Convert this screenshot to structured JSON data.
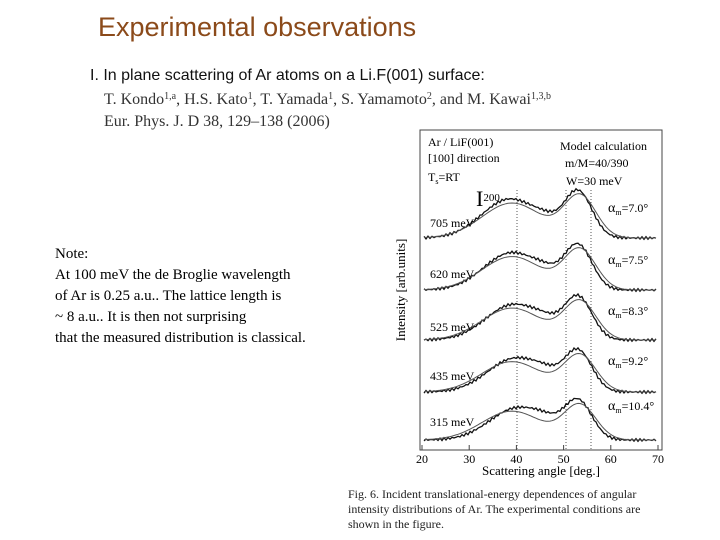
{
  "header": {
    "title": "Experimental observations",
    "subtitle": "I. In plane scattering of Ar atoms on a Li.F(001) surface:"
  },
  "citation": {
    "authors": [
      {
        "name": "T. Kondo",
        "sup": "1,a"
      },
      {
        "name": ", H.S. Kato",
        "sup": "1"
      },
      {
        "name": ", T. Yamada",
        "sup": "1"
      },
      {
        "name": ", S. Yamamoto",
        "sup": "2"
      },
      {
        "name": ", and M. Kawai",
        "sup": "1,3,b"
      }
    ],
    "journal": "Eur. Phys. J. D 38, 129–138 (2006)"
  },
  "note": {
    "heading": "Note:",
    "lines": [
      "At 100 meV the de Broglie wavelength",
      "of Ar is 0.25 a.u.. The lattice length is",
      "~ 8 a.u.. It is then not surprising",
      "that the measured distribution is classical."
    ]
  },
  "figure": {
    "labels": {
      "system": "Ar / LiF(001)",
      "direction": "[100] direction",
      "ts": "T",
      "ts_sub": "s",
      "ts_value": "=RT",
      "model": "Model calculation",
      "mass": "m/M=40/390",
      "width": "W=30 meV",
      "peak": "I",
      "peak_sub": "200"
    },
    "energies": [
      "705 meV",
      "620 meV",
      "525 meV",
      "435 meV",
      "315 meV"
    ],
    "alphas": [
      {
        "symbol": "α",
        "sub": "m",
        "value": "=7.0°"
      },
      {
        "symbol": "α",
        "sub": "m",
        "value": "=7.5°"
      },
      {
        "symbol": "α",
        "sub": "m",
        "value": "=8.3°"
      },
      {
        "symbol": "α",
        "sub": "m",
        "value": "=9.2°"
      },
      {
        "symbol": "α",
        "sub": "m",
        "value": "=10.4°"
      }
    ],
    "y_label": "Intensity [arb.units]",
    "x_label": "Scattering angle [deg.]",
    "xlim": [
      20,
      70
    ],
    "xticks": [
      20,
      30,
      40,
      50,
      60,
      70
    ],
    "caption": [
      "Fig. 6.  Incident translational-energy dependences of angular",
      "intensity distributions of Ar. The experimental conditions are",
      "shown in the figure."
    ]
  }
}
